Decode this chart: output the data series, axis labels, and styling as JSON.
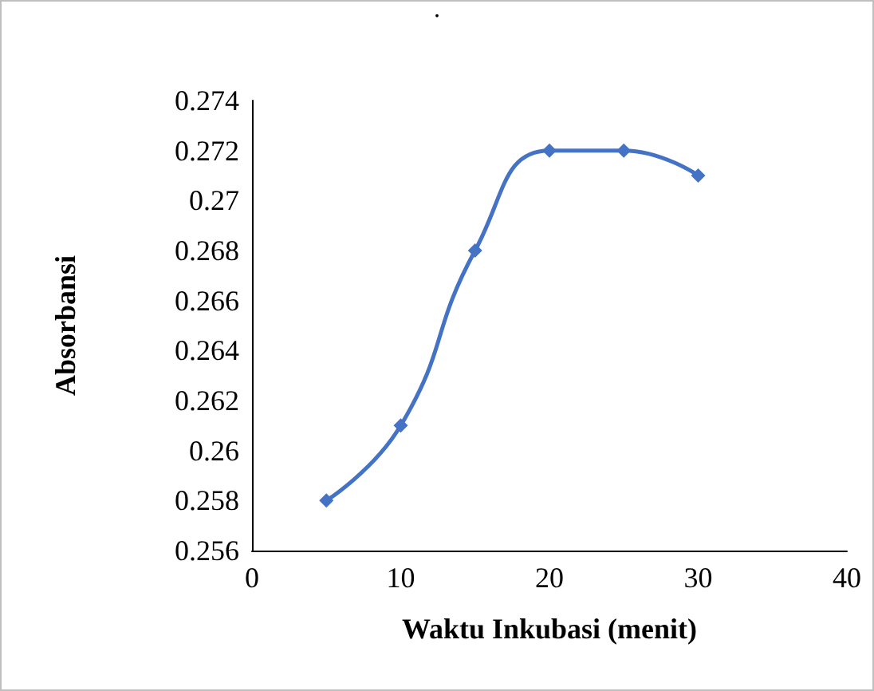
{
  "chart_data": {
    "type": "line",
    "title": ".",
    "xlabel": "Waktu Inkubasi (menit)",
    "ylabel": "Absorbansi",
    "x": [
      5,
      10,
      15,
      20,
      25,
      30
    ],
    "series": [
      {
        "color": "#4472c4",
        "values": [
          0.258,
          0.261,
          0.268,
          0.272,
          0.272,
          0.271
        ]
      }
    ],
    "xlim": [
      0,
      40
    ],
    "xticks": [
      0,
      10,
      20,
      30,
      40
    ],
    "ylim": [
      0.256,
      0.274
    ],
    "yticks": [
      0.256,
      0.258,
      0.26,
      0.262,
      0.264,
      0.266,
      0.268,
      0.27,
      0.272,
      0.274
    ],
    "marker": "diamond",
    "line_style": "solid",
    "grid": false
  }
}
